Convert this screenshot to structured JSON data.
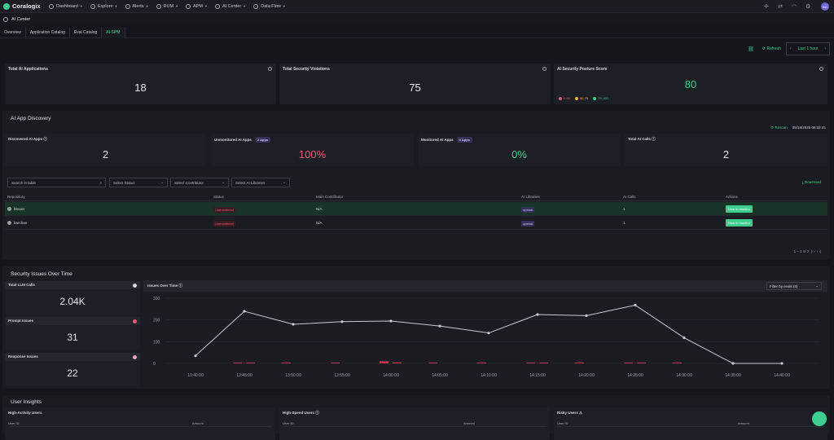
{
  "nav": {
    "brand": "Coralogix",
    "items": [
      "Dashboard",
      "Explore",
      "Alerts",
      "RUM",
      "APM",
      "AI Center",
      "Data Flow"
    ],
    "avatar": "BG"
  },
  "page": {
    "title": "AI Center"
  },
  "tabs": [
    "Overview",
    "Application Catalog",
    "Eval Catalog",
    "AI-SPM"
  ],
  "toolbar": {
    "refresh": "Refresh",
    "time_range": "Last 1 hour"
  },
  "kpis": [
    {
      "title": "Total AI Applications",
      "value": "18"
    },
    {
      "title": "Total Security Violations",
      "value": "75"
    },
    {
      "title": "AI Security Posture Score",
      "value": "80",
      "value_color": "#3ecf8e",
      "legend": [
        {
          "label": "0-50",
          "color": "#e45a72"
        },
        {
          "label": "50-75",
          "color": "#f2b33d"
        },
        {
          "label": "75-100",
          "color": "#3ecf8e"
        }
      ]
    }
  ],
  "discovery": {
    "title": "AI App Discovery",
    "rescan": "Rescan",
    "timestamp": "05/18/2025 08:32:41",
    "cards": [
      {
        "title": "Discovered AI Apps",
        "value": "2",
        "badge": ""
      },
      {
        "title": "Unmonitored AI Apps",
        "value": "100%",
        "badge": "2 Apps",
        "color": "#e45a72"
      },
      {
        "title": "Monitored AI Apps",
        "value": "0%",
        "badge": "0 Apps",
        "color": "#3ecf8e"
      },
      {
        "title": "Total AI Calls",
        "value": "2",
        "badge": ""
      }
    ],
    "filters": {
      "search": "Search in table",
      "status": "Select Status",
      "contributor": "Select Contributor",
      "libraries": "Select AI Libraries",
      "download": "Download"
    },
    "columns": [
      "Repository",
      "Status",
      "Main Contributor",
      "AI Libraries",
      "AI Calls",
      "Actions"
    ],
    "rows": [
      {
        "repo": "bitcoin",
        "status": "Unmonitored",
        "contributor": "N/A",
        "library": "openai",
        "calls": "1",
        "action": "How to monitor"
      },
      {
        "repo": "barchan",
        "status": "Unmonitored",
        "contributor": "N/A",
        "library": "openai",
        "calls": "1",
        "action": "How to monitor"
      }
    ],
    "pager": "1 – 2 of 2"
  },
  "security": {
    "title": "Security Issues Over Time",
    "cards": [
      {
        "title": "Total LLM Calls",
        "value": "2.04K",
        "dot": "#d6d8de"
      },
      {
        "title": "Prompt Issues",
        "value": "31",
        "dot": "#e45a72"
      },
      {
        "title": "Response Issues",
        "value": "22",
        "dot": "#f0a3b8"
      }
    ],
    "chart_title": "Issues Over Time",
    "filter": "Filter by evals (6)"
  },
  "chart_data": {
    "type": "line",
    "title": "Issues Over Time",
    "x": [
      "13:40:00",
      "13:45:00",
      "13:50:00",
      "13:55:00",
      "14:00:00",
      "14:05:00",
      "14:10:00",
      "14:15:00",
      "14:20:00",
      "14:25:00",
      "14:30:00",
      "14:35:00",
      "14:40:00"
    ],
    "y_ticks": [
      0,
      100,
      200,
      300
    ],
    "ylim": [
      0,
      300
    ],
    "series": [
      {
        "values": [
          35,
          240,
          180,
          192,
          195,
          172,
          140,
          225,
          220,
          268,
          118,
          0,
          0
        ],
        "color": "#c8cad1"
      }
    ],
    "bars": [
      {
        "x_index": 1,
        "values": [
          3,
          4
        ]
      },
      {
        "x_index": 2,
        "values": [
          2
        ]
      },
      {
        "x_index": 3,
        "values": [
          3
        ]
      },
      {
        "x_index": 4,
        "values": [
          10,
          5
        ]
      },
      {
        "x_index": 5,
        "values": [
          2
        ]
      },
      {
        "x_index": 6,
        "values": [
          2
        ]
      },
      {
        "x_index": 7,
        "values": [
          2,
          2
        ]
      },
      {
        "x_index": 8,
        "values": [
          2
        ]
      },
      {
        "x_index": 9,
        "values": [
          4,
          2
        ]
      },
      {
        "x_index": 10,
        "values": [
          1
        ]
      }
    ]
  },
  "insights": {
    "title": "User Insights",
    "cards": [
      {
        "title": "High-Activity Users",
        "cols": [
          "User ID",
          "Amount"
        ]
      },
      {
        "title": "High-Spend Users",
        "cols": [
          "User ID",
          "Amount"
        ]
      },
      {
        "title": "Risky Users",
        "cols": [
          "User ID",
          "Amount"
        ]
      }
    ]
  }
}
